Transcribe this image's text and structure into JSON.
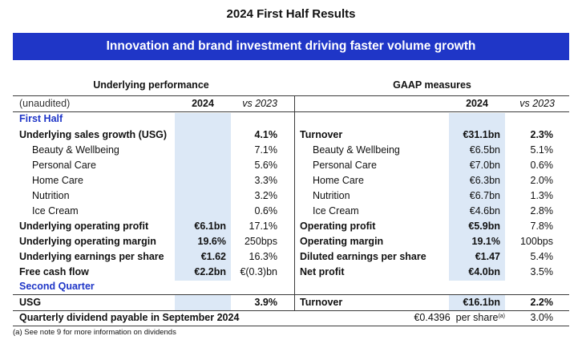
{
  "title": "2024 First Half Results",
  "banner": "Innovation and brand investment driving faster volume growth",
  "left_section_title": "Underlying performance",
  "right_section_title": "GAAP measures",
  "header": {
    "unaudited": "(unaudited)",
    "year": "2024",
    "vs": "vs 2023"
  },
  "first_half_label": "First Half",
  "second_quarter_label": "Second Quarter",
  "left_rows": [
    {
      "label": "Underlying sales growth (USG)",
      "val": "",
      "vs": "4.1%",
      "bold": true
    },
    {
      "label": "Beauty & Wellbeing",
      "val": "",
      "vs": "7.1%",
      "bold": false
    },
    {
      "label": "Personal Care",
      "val": "",
      "vs": "5.6%",
      "bold": false
    },
    {
      "label": "Home Care",
      "val": "",
      "vs": "3.3%",
      "bold": false
    },
    {
      "label": "Nutrition",
      "val": "",
      "vs": "3.2%",
      "bold": false
    },
    {
      "label": "Ice Cream",
      "val": "",
      "vs": "0.6%",
      "bold": false
    },
    {
      "label": "Underlying operating profit",
      "val": "€6.1bn",
      "vs": "17.1%",
      "bold": true
    },
    {
      "label": "Underlying operating margin",
      "val": "19.6%",
      "vs": "250bps",
      "bold": true
    },
    {
      "label": "Underlying earnings per share",
      "val": "€1.62",
      "vs": "16.3%",
      "bold": true
    },
    {
      "label": "Free cash flow",
      "val": "€2.2bn",
      "vs": "€(0.3)bn",
      "bold": true
    }
  ],
  "right_rows": [
    {
      "label": "Turnover",
      "val": "€31.1bn",
      "vs": "2.3%",
      "bold": true
    },
    {
      "label": "Beauty & Wellbeing",
      "val": "€6.5bn",
      "vs": "5.1%",
      "bold": false
    },
    {
      "label": "Personal Care",
      "val": "€7.0bn",
      "vs": "0.6%",
      "bold": false
    },
    {
      "label": "Home Care",
      "val": "€6.3bn",
      "vs": "2.0%",
      "bold": false
    },
    {
      "label": "Nutrition",
      "val": "€6.7bn",
      "vs": "1.3%",
      "bold": false
    },
    {
      "label": "Ice Cream",
      "val": "€4.6bn",
      "vs": "2.8%",
      "bold": false
    },
    {
      "label": "Operating profit",
      "val": "€5.9bn",
      "vs": "7.8%",
      "bold": true
    },
    {
      "label": "Operating margin",
      "val": "19.1%",
      "vs": "100bps",
      "bold": true
    },
    {
      "label": "Diluted earnings per share",
      "val": "€1.47",
      "vs": "5.4%",
      "bold": true
    },
    {
      "label": "Net profit",
      "val": "€4.0bn",
      "vs": "3.5%",
      "bold": true
    }
  ],
  "q2_left": {
    "label": "USG",
    "val": "",
    "vs": "3.9%"
  },
  "q2_right": {
    "label": "Turnover",
    "val": "€16.1bn",
    "vs": "2.2%"
  },
  "dividend": {
    "label": "Quarterly dividend payable in September 2024",
    "amount": "€0.4396",
    "per_share": "per share",
    "note_mark": "(a)",
    "vs": "3.0%"
  },
  "footnote": "(a) See note 9 for more information on dividends",
  "colors": {
    "accent": "#1f36c7",
    "shade": "#dce8f6"
  }
}
